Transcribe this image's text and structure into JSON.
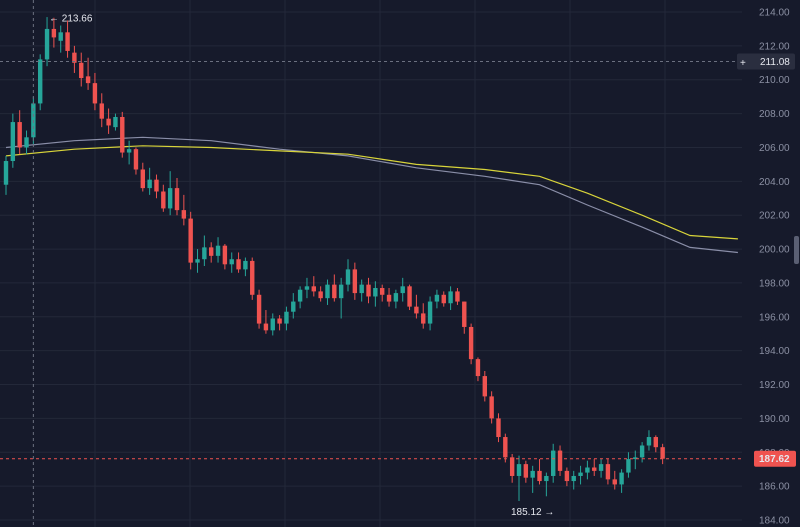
{
  "chart_data": {
    "type": "candlestick",
    "ylim": [
      184,
      214
    ],
    "y_ticks": [
      "214.00",
      "212.00",
      "210.00",
      "208.00",
      "206.00",
      "204.00",
      "202.00",
      "200.00",
      "198.00",
      "196.00",
      "194.00",
      "192.00",
      "190.00",
      "188.00",
      "186.00",
      "184.00"
    ],
    "grid": true,
    "colors": {
      "background": "#161a2b",
      "up": "#26a69a",
      "down": "#ef5350",
      "ma_fast": "#d8d43a",
      "ma_slow": "#8a8ea8",
      "last_price_badge": "#ef5350"
    },
    "candles": [
      [
        203.8,
        205.5,
        203.2,
        205.2
      ],
      [
        205.2,
        208.0,
        204.8,
        207.5
      ],
      [
        207.5,
        208.2,
        205.6,
        206.0
      ],
      [
        206.0,
        207.0,
        205.6,
        206.6
      ],
      [
        206.6,
        209.0,
        206.2,
        208.6
      ],
      [
        208.6,
        211.5,
        208.2,
        211.2
      ],
      [
        211.2,
        213.7,
        210.8,
        213.0
      ],
      [
        213.0,
        213.66,
        211.9,
        212.5
      ],
      [
        212.3,
        213.2,
        211.6,
        212.8
      ],
      [
        212.8,
        213.5,
        211.3,
        211.7
      ],
      [
        211.6,
        212.0,
        210.4,
        211.0
      ],
      [
        211.0,
        211.6,
        209.6,
        210.1
      ],
      [
        210.2,
        211.3,
        209.4,
        209.8
      ],
      [
        209.8,
        210.4,
        208.2,
        208.6
      ],
      [
        208.6,
        209.2,
        207.2,
        207.7
      ],
      [
        207.7,
        208.3,
        206.8,
        207.3
      ],
      [
        207.2,
        208.0,
        207.0,
        207.8
      ],
      [
        207.8,
        208.1,
        205.4,
        205.7
      ],
      [
        205.7,
        206.4,
        205.0,
        205.9
      ],
      [
        205.9,
        206.0,
        204.4,
        204.7
      ],
      [
        204.7,
        205.1,
        203.4,
        203.6
      ],
      [
        203.6,
        204.8,
        203.2,
        204.1
      ],
      [
        204.1,
        204.4,
        203.0,
        203.4
      ],
      [
        203.4,
        203.8,
        202.2,
        202.4
      ],
      [
        202.4,
        204.6,
        202.0,
        203.6
      ],
      [
        203.6,
        204.2,
        202.0,
        202.3
      ],
      [
        202.3,
        203.2,
        201.4,
        201.8
      ],
      [
        201.8,
        202.2,
        198.8,
        199.2
      ],
      [
        199.2,
        200.0,
        198.6,
        199.4
      ],
      [
        199.4,
        200.8,
        199.0,
        200.1
      ],
      [
        200.1,
        200.4,
        199.2,
        199.6
      ],
      [
        199.6,
        200.7,
        199.2,
        200.2
      ],
      [
        200.2,
        200.3,
        198.8,
        199.1
      ],
      [
        199.1,
        199.8,
        198.6,
        199.4
      ],
      [
        199.4,
        199.8,
        198.6,
        198.8
      ],
      [
        198.8,
        199.5,
        198.4,
        199.3
      ],
      [
        199.3,
        199.5,
        197.0,
        197.3
      ],
      [
        197.3,
        197.6,
        195.3,
        195.6
      ],
      [
        195.6,
        196.4,
        195.0,
        195.2
      ],
      [
        195.2,
        196.2,
        194.9,
        195.9
      ],
      [
        195.9,
        196.1,
        195.2,
        195.6
      ],
      [
        195.6,
        196.6,
        195.2,
        196.3
      ],
      [
        196.3,
        197.4,
        195.9,
        196.9
      ],
      [
        196.9,
        197.8,
        196.5,
        197.6
      ],
      [
        197.6,
        198.3,
        197.1,
        197.8
      ],
      [
        197.8,
        198.4,
        197.2,
        197.5
      ],
      [
        197.5,
        197.8,
        196.9,
        197.1
      ],
      [
        197.1,
        198.2,
        196.7,
        197.9
      ],
      [
        197.9,
        198.5,
        196.9,
        197.1
      ],
      [
        197.1,
        198.3,
        195.9,
        197.9
      ],
      [
        197.9,
        199.4,
        197.5,
        198.8
      ],
      [
        198.8,
        199.2,
        197.0,
        197.4
      ],
      [
        197.4,
        198.2,
        196.9,
        197.9
      ],
      [
        197.9,
        198.3,
        196.8,
        197.2
      ],
      [
        197.2,
        198.1,
        196.6,
        197.7
      ],
      [
        197.7,
        197.9,
        196.9,
        197.3
      ],
      [
        197.3,
        197.7,
        196.6,
        196.9
      ],
      [
        196.9,
        197.6,
        196.5,
        197.4
      ],
      [
        197.4,
        198.3,
        196.9,
        197.8
      ],
      [
        197.8,
        197.9,
        196.4,
        196.6
      ],
      [
        196.6,
        197.3,
        195.9,
        196.2
      ],
      [
        196.2,
        196.8,
        195.3,
        195.6
      ],
      [
        195.6,
        197.2,
        195.2,
        196.9
      ],
      [
        196.9,
        197.6,
        196.5,
        197.3
      ],
      [
        197.3,
        197.5,
        196.6,
        196.8
      ],
      [
        196.8,
        197.8,
        196.4,
        197.5
      ],
      [
        197.5,
        197.7,
        196.7,
        196.9
      ],
      [
        196.9,
        196.9,
        195.0,
        195.4
      ],
      [
        195.4,
        195.6,
        193.2,
        193.5
      ],
      [
        193.5,
        193.6,
        192.2,
        192.5
      ],
      [
        192.5,
        192.8,
        191.0,
        191.3
      ],
      [
        191.3,
        191.6,
        189.7,
        190.0
      ],
      [
        190.0,
        190.3,
        188.6,
        188.9
      ],
      [
        188.9,
        189.1,
        187.4,
        187.7
      ],
      [
        187.7,
        187.9,
        186.2,
        186.6
      ],
      [
        186.6,
        187.8,
        185.12,
        187.3
      ],
      [
        187.3,
        187.5,
        186.2,
        186.5
      ],
      [
        186.5,
        187.2,
        185.6,
        186.9
      ],
      [
        186.9,
        187.6,
        186.1,
        186.3
      ],
      [
        186.3,
        186.8,
        185.4,
        186.6
      ],
      [
        186.6,
        188.5,
        186.2,
        188.1
      ],
      [
        188.1,
        188.4,
        186.6,
        186.9
      ],
      [
        186.9,
        187.1,
        186.0,
        186.3
      ],
      [
        186.3,
        186.9,
        185.8,
        186.6
      ],
      [
        186.6,
        187.2,
        186.1,
        186.8
      ],
      [
        186.8,
        187.5,
        186.4,
        187.1
      ],
      [
        187.1,
        187.6,
        186.6,
        186.9
      ],
      [
        186.9,
        187.6,
        186.5,
        187.3
      ],
      [
        187.3,
        187.6,
        186.1,
        186.4
      ],
      [
        186.4,
        186.9,
        185.8,
        186.1
      ],
      [
        186.1,
        187.0,
        185.6,
        186.8
      ],
      [
        186.8,
        188.0,
        186.5,
        187.6
      ],
      [
        187.6,
        188.1,
        187.0,
        187.7
      ],
      [
        187.7,
        188.6,
        187.4,
        188.4
      ],
      [
        188.4,
        189.3,
        188.1,
        188.9
      ],
      [
        188.9,
        189.0,
        188.0,
        188.3
      ],
      [
        188.3,
        188.5,
        187.3,
        187.62
      ]
    ],
    "ma_fast": [
      [
        0,
        205.5
      ],
      [
        10,
        205.9
      ],
      [
        20,
        206.1
      ],
      [
        30,
        206.0
      ],
      [
        40,
        205.8
      ],
      [
        50,
        205.6
      ],
      [
        60,
        205.0
      ],
      [
        70,
        204.7
      ],
      [
        78,
        204.3
      ],
      [
        85,
        203.3
      ],
      [
        93,
        202.0
      ],
      [
        100,
        200.8
      ],
      [
        107,
        200.6
      ]
    ],
    "ma_slow": [
      [
        0,
        206.0
      ],
      [
        10,
        206.4
      ],
      [
        20,
        206.6
      ],
      [
        30,
        206.4
      ],
      [
        40,
        205.9
      ],
      [
        50,
        205.5
      ],
      [
        60,
        204.8
      ],
      [
        70,
        204.3
      ],
      [
        78,
        203.8
      ],
      [
        85,
        202.6
      ],
      [
        93,
        201.3
      ],
      [
        100,
        200.1
      ],
      [
        107,
        199.8
      ]
    ],
    "annotations": {
      "high_label": "← 213.66",
      "low_label": "185.12 →",
      "crosshair_price": "211.08",
      "crosshair_plus": "+",
      "last_price": "187.62"
    }
  }
}
